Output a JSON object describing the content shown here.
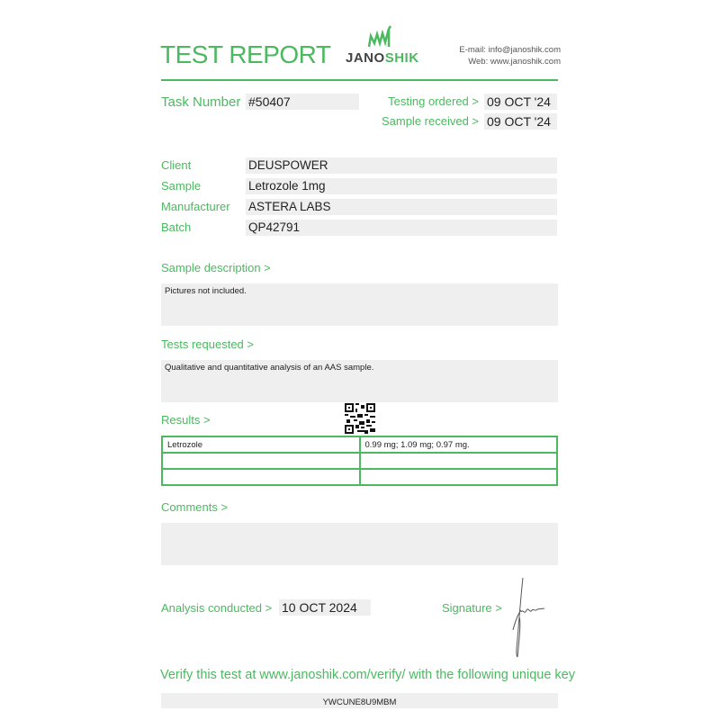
{
  "header": {
    "title": "TEST REPORT",
    "logo_text_dark": "JANO",
    "logo_text_green": "SHIK",
    "email": "E-mail: info@janoshik.com",
    "web": "Web: www.janoshik.com"
  },
  "task": {
    "label": "Task Number",
    "value": "#50407"
  },
  "dates": {
    "testing_ordered_label": "Testing ordered  >",
    "testing_ordered": "09 OCT '24",
    "sample_received_label": "Sample received >",
    "sample_received": "09 OCT '24"
  },
  "info": [
    {
      "label": "Client",
      "value": "DEUSPOWER"
    },
    {
      "label": "Sample",
      "value": "Letrozole 1mg"
    },
    {
      "label": "Manufacturer",
      "value": "ASTERA LABS"
    },
    {
      "label": "Batch",
      "value": "QP42791"
    }
  ],
  "sample_description": {
    "label": "Sample description >",
    "text": "Pictures not included."
  },
  "tests_requested": {
    "label": "Tests requested >",
    "text": "Qualitative and quantitative analysis of an AAS sample."
  },
  "results": {
    "label": "Results >",
    "rows": [
      [
        "Letrozole",
        "0.99 mg; 1.09 mg; 0.97 mg."
      ],
      [
        "",
        ""
      ],
      [
        "",
        ""
      ]
    ]
  },
  "comments": {
    "label": "Comments >",
    "text": ""
  },
  "analysis": {
    "label": "Analysis conducted >",
    "value": "10 OCT 2024"
  },
  "signature": {
    "label": "Signature >"
  },
  "verify": {
    "text": "Verify this test at www.janoshik.com/verify/ with the following unique key",
    "key": "YWCUNE8U9MBM"
  },
  "colors": {
    "accent": "#4cb860",
    "field_bg": "#efefef"
  }
}
